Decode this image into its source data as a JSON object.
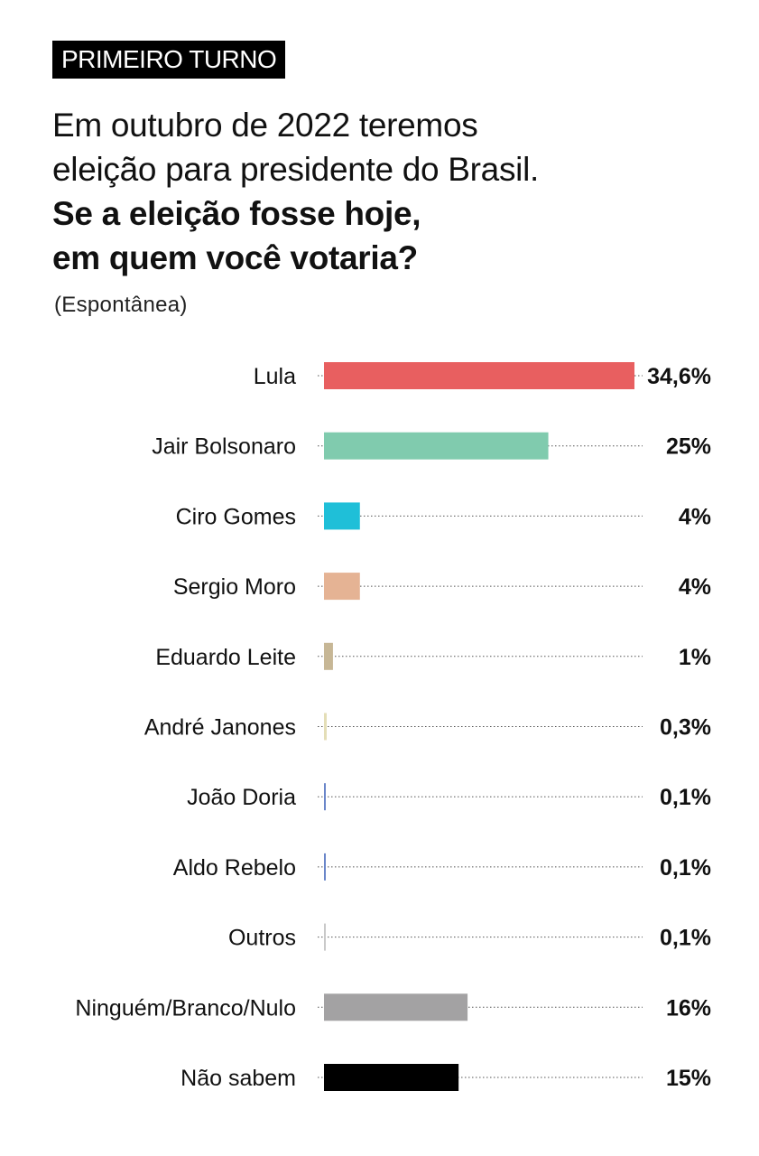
{
  "tag": "PRIMEIRO TURNO",
  "title_line1": "Em outubro de 2022 teremos",
  "title_line2": "eleição para presidente do Brasil.",
  "question_line1": "Se a eleição fosse hoje,",
  "question_line2": "em quem você votaria?",
  "subtitle": "(Espontânea)",
  "chart_data": {
    "type": "bar",
    "orientation": "horizontal",
    "categories": [
      "Lula",
      "Jair Bolsonaro",
      "Ciro Gomes",
      "Sergio Moro",
      "Eduardo Leite",
      "André Janones",
      "João Doria",
      "Aldo Rebelo",
      "Outros",
      "Ninguém/Branco/Nulo",
      "Não sabem"
    ],
    "values": [
      34.6,
      25,
      4,
      4,
      1,
      0.3,
      0.1,
      0.1,
      0.1,
      16,
      15
    ],
    "value_labels": [
      "34,6%",
      "25%",
      "4%",
      "4%",
      "1%",
      "0,3%",
      "0,1%",
      "0,1%",
      "0,1%",
      "16%",
      "15%"
    ],
    "colors": [
      "#e85f60",
      "#80cbae",
      "#1fbfd8",
      "#e5b394",
      "#c7b796",
      "#e4deb7",
      "#6a86c9",
      "#6a86c9",
      "#c9c9c9",
      "#a3a2a3",
      "#000000"
    ],
    "xlim": [
      0,
      34.6
    ],
    "grid": false
  }
}
